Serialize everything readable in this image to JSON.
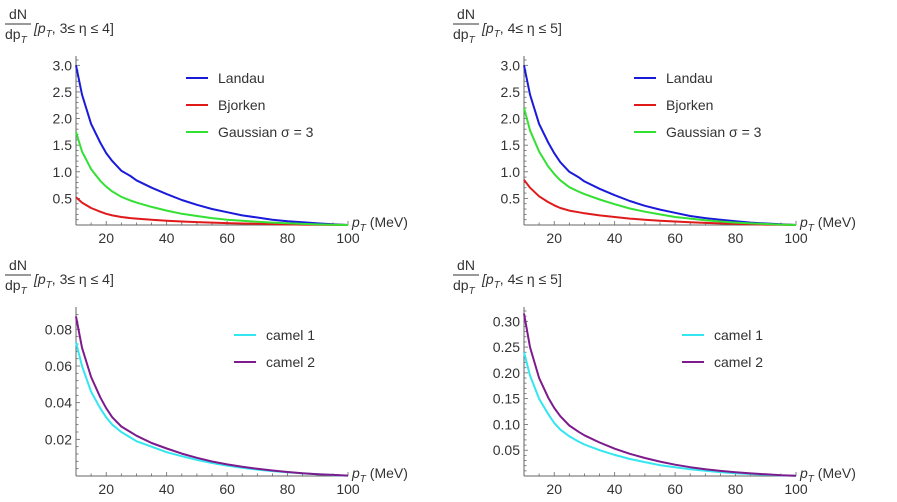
{
  "chart_data": [
    {
      "type": "line",
      "ylabel": {
        "numerator": "dN",
        "denominator": "dp",
        "denominator_sub": "T",
        "bracket": "[p",
        "bracket_sub": "T",
        "range": ", 3≤ η ≤ 4]"
      },
      "xlabel": {
        "main": "p",
        "sub": "T",
        "unit": " (MeV)"
      },
      "xlim": [
        10,
        100
      ],
      "ylim": [
        0,
        3.1
      ],
      "xticks": [
        20,
        40,
        60,
        80,
        100
      ],
      "yticks": [
        0.5,
        1.0,
        1.5,
        2.0,
        2.5,
        3.0
      ],
      "ytick_labels": [
        "0.5",
        "1.0",
        "1.5",
        "2.0",
        "2.5",
        "3.0"
      ],
      "legend_position": "top-right",
      "series": [
        {
          "name": "Landau",
          "color": "#1a1adb",
          "x": [
            10,
            12,
            15,
            18,
            20,
            22,
            25,
            28,
            30,
            35,
            40,
            45,
            50,
            55,
            60,
            65,
            70,
            75,
            80,
            85,
            90,
            95,
            100
          ],
          "y": [
            3.0,
            2.45,
            1.9,
            1.55,
            1.35,
            1.2,
            1.02,
            0.92,
            0.84,
            0.7,
            0.58,
            0.47,
            0.38,
            0.3,
            0.24,
            0.18,
            0.14,
            0.1,
            0.07,
            0.05,
            0.03,
            0.015,
            0.0
          ]
        },
        {
          "name": "Bjorken",
          "color": "#e01a1a",
          "x": [
            10,
            12,
            15,
            18,
            20,
            22,
            25,
            28,
            30,
            35,
            40,
            45,
            50,
            55,
            60,
            65,
            70,
            75,
            80,
            85,
            90,
            95,
            100
          ],
          "y": [
            0.52,
            0.42,
            0.32,
            0.25,
            0.21,
            0.18,
            0.15,
            0.13,
            0.12,
            0.1,
            0.08,
            0.065,
            0.055,
            0.045,
            0.035,
            0.028,
            0.022,
            0.016,
            0.011,
            0.007,
            0.004,
            0.002,
            0.0
          ]
        },
        {
          "name": "Gaussian σ = 3",
          "color": "#33e033",
          "x": [
            10,
            12,
            15,
            18,
            20,
            22,
            25,
            28,
            30,
            35,
            40,
            45,
            50,
            55,
            60,
            65,
            70,
            75,
            80,
            85,
            90,
            95,
            100
          ],
          "y": [
            1.75,
            1.38,
            1.05,
            0.83,
            0.72,
            0.63,
            0.53,
            0.46,
            0.42,
            0.34,
            0.27,
            0.21,
            0.17,
            0.13,
            0.1,
            0.08,
            0.06,
            0.045,
            0.032,
            0.02,
            0.012,
            0.006,
            0.0
          ]
        }
      ]
    },
    {
      "type": "line",
      "ylabel": {
        "numerator": "dN",
        "denominator": "dp",
        "denominator_sub": "T",
        "bracket": "[p",
        "bracket_sub": "T",
        "range": ", 4≤ η ≤ 5]"
      },
      "xlabel": {
        "main": "p",
        "sub": "T",
        "unit": " (MeV)"
      },
      "xlim": [
        10,
        100
      ],
      "ylim": [
        0,
        3.1
      ],
      "xticks": [
        20,
        40,
        60,
        80,
        100
      ],
      "yticks": [
        0.5,
        1.0,
        1.5,
        2.0,
        2.5,
        3.0
      ],
      "ytick_labels": [
        "0.5",
        "1.0",
        "1.5",
        "2.0",
        "2.5",
        "3.0"
      ],
      "legend_position": "top-right",
      "series": [
        {
          "name": "Landau",
          "color": "#1a1adb",
          "x": [
            10,
            12,
            15,
            18,
            20,
            22,
            25,
            28,
            30,
            35,
            40,
            45,
            50,
            55,
            60,
            65,
            70,
            75,
            80,
            85,
            90,
            95,
            100
          ],
          "y": [
            3.0,
            2.45,
            1.9,
            1.55,
            1.35,
            1.18,
            1.0,
            0.9,
            0.82,
            0.68,
            0.56,
            0.45,
            0.36,
            0.29,
            0.23,
            0.17,
            0.13,
            0.1,
            0.07,
            0.045,
            0.028,
            0.013,
            0.0
          ]
        },
        {
          "name": "Bjorken",
          "color": "#e01a1a",
          "x": [
            10,
            12,
            15,
            18,
            20,
            22,
            25,
            28,
            30,
            35,
            40,
            45,
            50,
            55,
            60,
            65,
            70,
            75,
            80,
            85,
            90,
            95,
            100
          ],
          "y": [
            0.85,
            0.7,
            0.54,
            0.43,
            0.37,
            0.32,
            0.27,
            0.24,
            0.22,
            0.18,
            0.15,
            0.12,
            0.1,
            0.08,
            0.065,
            0.05,
            0.04,
            0.03,
            0.02,
            0.013,
            0.008,
            0.004,
            0.0
          ]
        },
        {
          "name": "Gaussian σ = 3",
          "color": "#33e033",
          "x": [
            10,
            12,
            15,
            18,
            20,
            22,
            25,
            28,
            30,
            35,
            40,
            45,
            50,
            55,
            60,
            65,
            70,
            75,
            80,
            85,
            90,
            95,
            100
          ],
          "y": [
            2.2,
            1.78,
            1.38,
            1.1,
            0.96,
            0.84,
            0.71,
            0.63,
            0.58,
            0.48,
            0.39,
            0.31,
            0.25,
            0.2,
            0.15,
            0.12,
            0.09,
            0.065,
            0.045,
            0.03,
            0.018,
            0.008,
            0.0
          ]
        }
      ]
    },
    {
      "type": "line",
      "ylabel": {
        "numerator": "dN",
        "denominator": "dp",
        "denominator_sub": "T",
        "bracket": "[p",
        "bracket_sub": "T",
        "range": ", 3≤ η ≤ 4]"
      },
      "xlabel": {
        "main": "p",
        "sub": "T",
        "unit": " (MeV)"
      },
      "xlim": [
        10,
        100
      ],
      "ylim": [
        0,
        0.09
      ],
      "xticks": [
        20,
        40,
        60,
        80,
        100
      ],
      "yticks": [
        0.02,
        0.04,
        0.06,
        0.08
      ],
      "ytick_labels": [
        "0.02",
        "0.04",
        "0.06",
        "0.08"
      ],
      "legend_position": "top-right",
      "series": [
        {
          "name": "camel 1",
          "color": "#33e6f0",
          "x": [
            10,
            12,
            15,
            18,
            20,
            22,
            25,
            28,
            30,
            35,
            40,
            45,
            50,
            55,
            60,
            65,
            70,
            75,
            80,
            85,
            90,
            95,
            100
          ],
          "y": [
            0.073,
            0.06,
            0.046,
            0.037,
            0.032,
            0.028,
            0.024,
            0.021,
            0.019,
            0.016,
            0.013,
            0.0108,
            0.0088,
            0.0071,
            0.0057,
            0.0045,
            0.0035,
            0.0027,
            0.002,
            0.0014,
            0.0009,
            0.0005,
            0.0002
          ]
        },
        {
          "name": "camel 2",
          "color": "#7d1a8c",
          "x": [
            10,
            12,
            15,
            18,
            20,
            22,
            25,
            28,
            30,
            35,
            40,
            45,
            50,
            55,
            60,
            65,
            70,
            75,
            80,
            85,
            90,
            95,
            100
          ],
          "y": [
            0.087,
            0.07,
            0.054,
            0.043,
            0.037,
            0.032,
            0.027,
            0.024,
            0.022,
            0.018,
            0.015,
            0.0122,
            0.0099,
            0.0079,
            0.0063,
            0.005,
            0.0039,
            0.003,
            0.0022,
            0.0015,
            0.001,
            0.0006,
            0.0002
          ]
        }
      ]
    },
    {
      "type": "line",
      "ylabel": {
        "numerator": "dN",
        "denominator": "dp",
        "denominator_sub": "T",
        "bracket": "[p",
        "bracket_sub": "T",
        "range": ", 4≤ η ≤ 5]"
      },
      "xlabel": {
        "main": "p",
        "sub": "T",
        "unit": " (MeV)"
      },
      "xlim": [
        10,
        100
      ],
      "ylim": [
        0,
        0.32
      ],
      "xticks": [
        20,
        40,
        60,
        80,
        100
      ],
      "yticks": [
        0.05,
        0.1,
        0.15,
        0.2,
        0.25,
        0.3
      ],
      "ytick_labels": [
        "0.05",
        "0.10",
        "0.15",
        "0.20",
        "0.25",
        "0.30"
      ],
      "legend_position": "top-right",
      "series": [
        {
          "name": "camel 1",
          "color": "#33e6f0",
          "x": [
            10,
            12,
            15,
            18,
            20,
            22,
            25,
            28,
            30,
            35,
            40,
            45,
            50,
            55,
            60,
            65,
            70,
            75,
            80,
            85,
            90,
            95,
            100
          ],
          "y": [
            0.24,
            0.195,
            0.15,
            0.12,
            0.103,
            0.09,
            0.077,
            0.067,
            0.061,
            0.05,
            0.041,
            0.033,
            0.027,
            0.021,
            0.017,
            0.013,
            0.01,
            0.0075,
            0.0055,
            0.0038,
            0.0024,
            0.0012,
            0.0004
          ]
        },
        {
          "name": "camel 2",
          "color": "#7d1a8c",
          "x": [
            10,
            12,
            15,
            18,
            20,
            22,
            25,
            28,
            30,
            35,
            40,
            45,
            50,
            55,
            60,
            65,
            70,
            75,
            80,
            85,
            90,
            95,
            100
          ],
          "y": [
            0.315,
            0.25,
            0.19,
            0.152,
            0.132,
            0.116,
            0.098,
            0.086,
            0.079,
            0.065,
            0.053,
            0.043,
            0.035,
            0.028,
            0.022,
            0.017,
            0.013,
            0.0098,
            0.0072,
            0.005,
            0.0032,
            0.0016,
            0.0005
          ]
        }
      ]
    }
  ]
}
